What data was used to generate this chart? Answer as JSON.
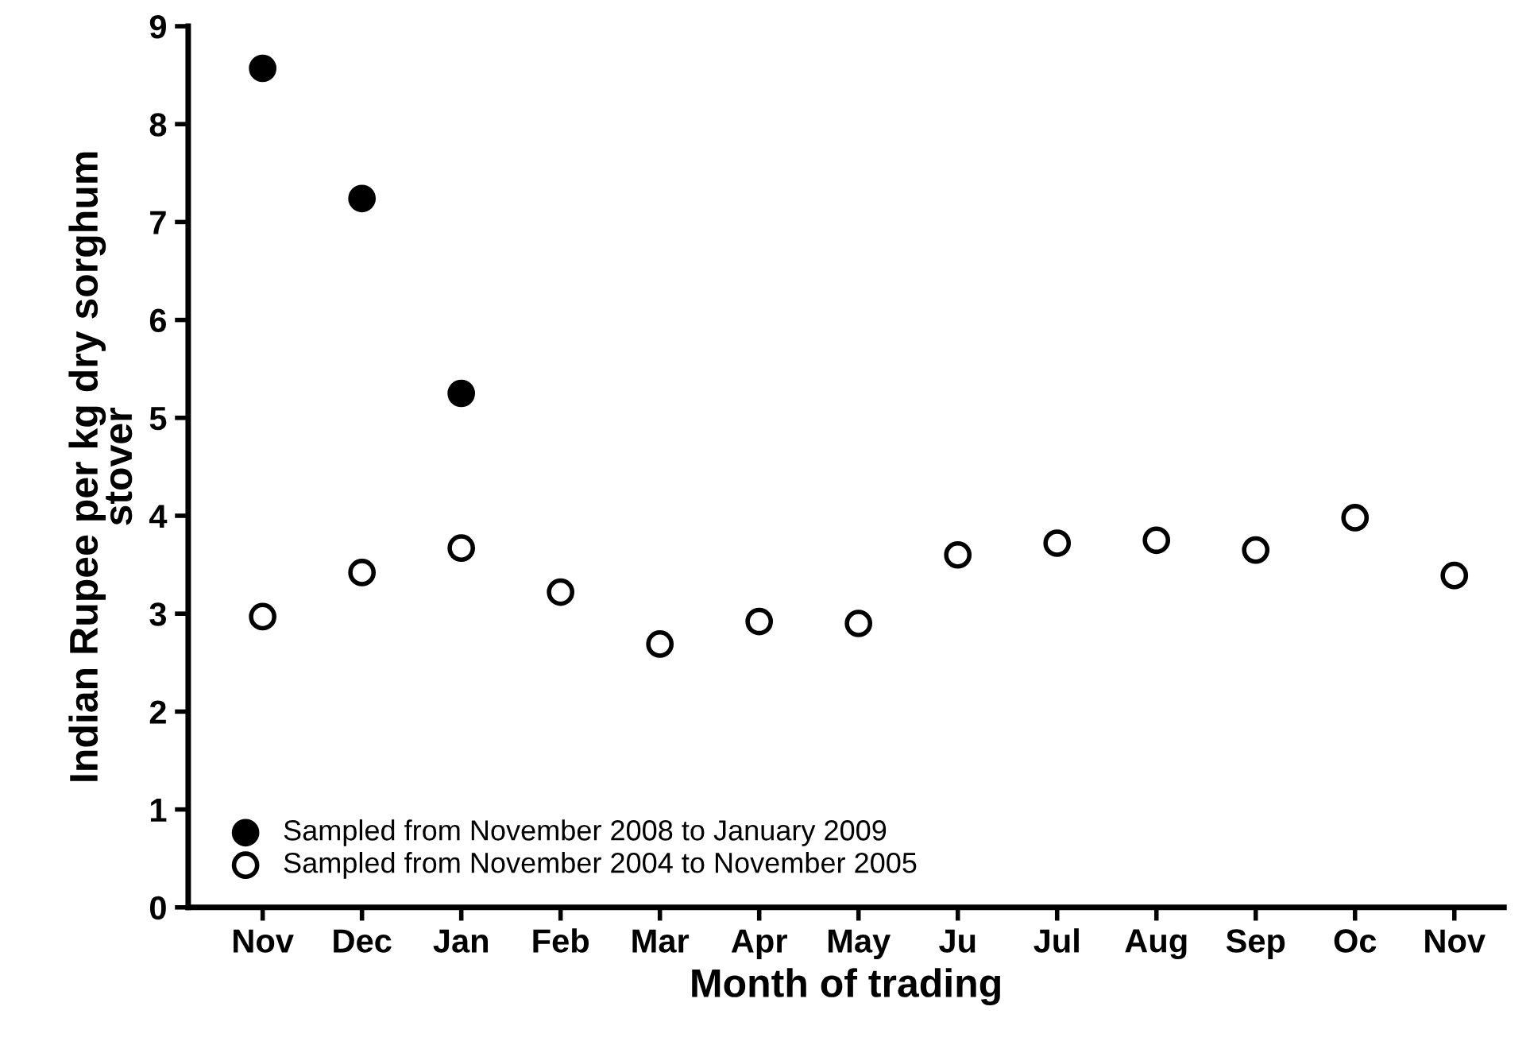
{
  "chart_data": {
    "type": "scatter",
    "xlabel": "Month of trading",
    "ylabel": "Indian Rupee per kg dry sorghum\nstover",
    "categories": [
      "Nov",
      "Dec",
      "Jan",
      "Feb",
      "Mar",
      "Apr",
      "May",
      "Ju",
      "Jul",
      "Aug",
      "Sep",
      "Oc",
      "Nov"
    ],
    "series": [
      {
        "name": "Sampled from November 2008 to January 2009",
        "color": "#000000",
        "values": [
          8.57,
          7.24,
          5.25,
          null,
          null,
          null,
          null,
          null,
          null,
          null,
          null,
          null,
          null
        ]
      },
      {
        "name": "Sampled from November 2004 to November 2005",
        "color": "#ffffff",
        "values": [
          2.97,
          3.42,
          3.67,
          3.22,
          2.69,
          2.92,
          2.9,
          3.6,
          3.72,
          3.75,
          3.65,
          3.98,
          3.39
        ]
      }
    ],
    "ylim": [
      0,
      9
    ],
    "yticks": [
      0,
      1,
      2,
      3,
      4,
      5,
      6,
      7,
      8,
      9
    ],
    "marker": "circle",
    "legend": "bottom left",
    "grid": false
  }
}
